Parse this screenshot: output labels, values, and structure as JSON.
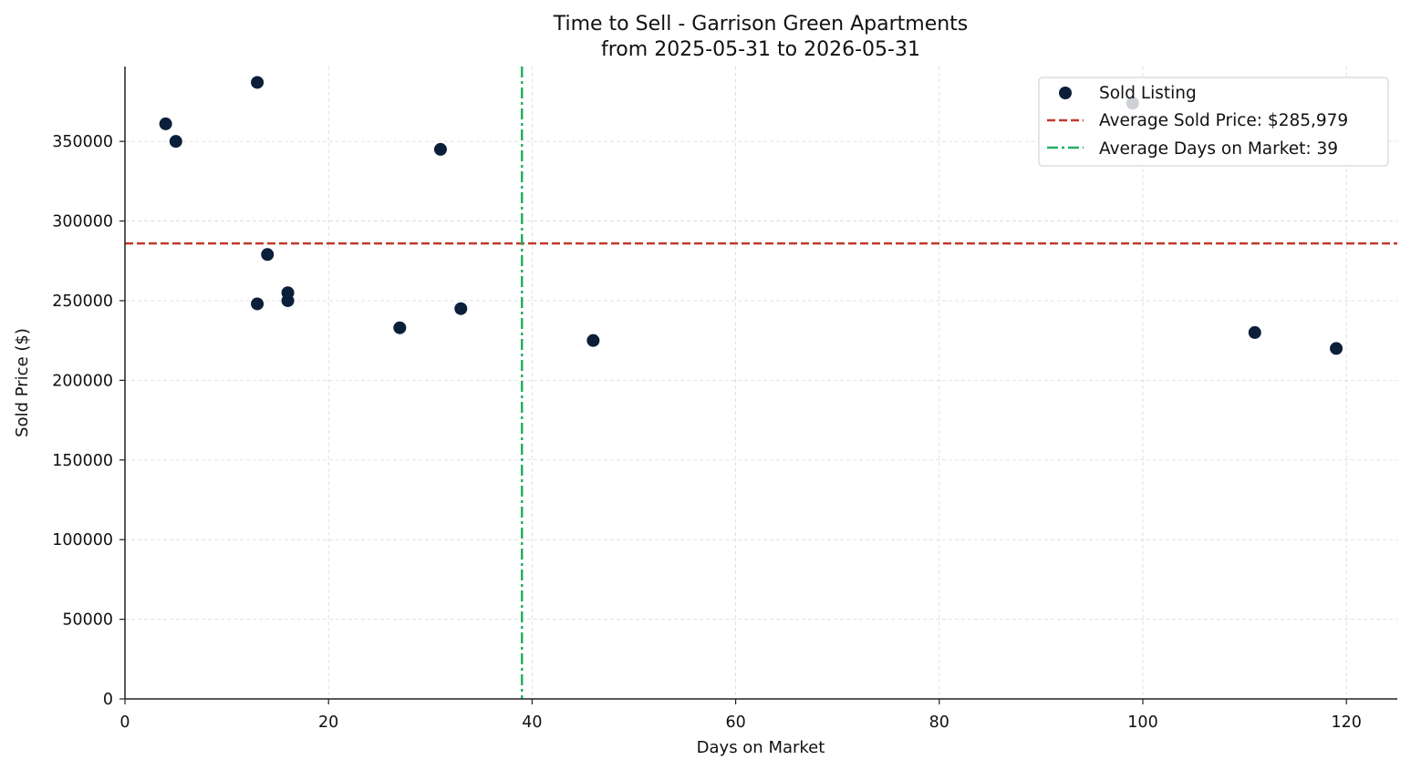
{
  "chart_data": {
    "type": "scatter",
    "title": "Time to Sell - Garrison Green Apartments",
    "subtitle": "from 2025-05-31 to 2026-05-31",
    "xlabel": "Days on Market",
    "ylabel": "Sold Price ($)",
    "xlim": [
      0,
      125
    ],
    "ylim": [
      0,
      397000
    ],
    "x_ticks": [
      0,
      20,
      40,
      60,
      80,
      100,
      120
    ],
    "y_ticks": [
      0,
      50000,
      100000,
      150000,
      200000,
      250000,
      300000,
      350000
    ],
    "grid": true,
    "legend_position": "top-right",
    "series": [
      {
        "name": "Sold Listing",
        "color": "#0b1f3a",
        "x": [
          4,
          5,
          13,
          13,
          14,
          16,
          16,
          27,
          31,
          33,
          46,
          99,
          111,
          119
        ],
        "y": [
          361000,
          350000,
          387000,
          248000,
          279000,
          255000,
          250000,
          233000,
          345000,
          245000,
          225000,
          374000,
          230000,
          220000
        ]
      }
    ],
    "reference_lines": [
      {
        "name": "Average Sold Price: $285,979",
        "orientation": "horizontal",
        "value": 285979,
        "color": "#c0392b",
        "style": "dashed"
      },
      {
        "name": "Average Days on Market: 39",
        "orientation": "vertical",
        "value": 39,
        "color": "#27ae60",
        "style": "dashdot"
      }
    ]
  }
}
